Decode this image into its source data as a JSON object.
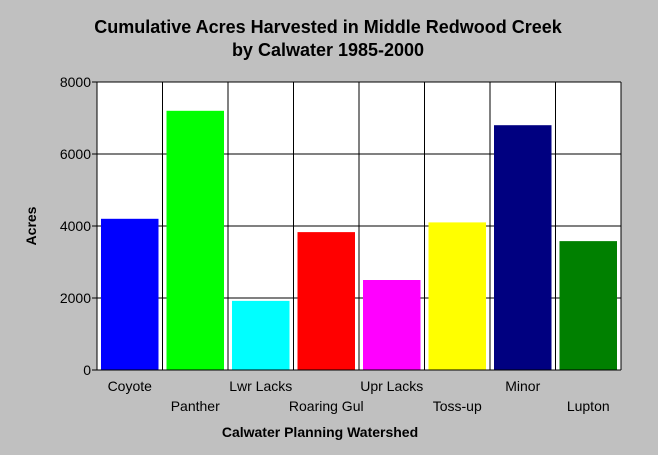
{
  "chart_data": {
    "type": "bar",
    "title": "Cumulative Acres Harvested in Middle Redwood Creek",
    "subtitle": "by Calwater 1985-2000",
    "xlabel": "Calwater Planning Watershed",
    "ylabel": "Acres",
    "ylim": [
      0,
      8000
    ],
    "yticks": [
      0,
      2000,
      4000,
      6000,
      8000
    ],
    "ytick_labels": [
      "0",
      "2000",
      "4000",
      "6000",
      "8000"
    ],
    "grid": true,
    "legend": "none",
    "categories": [
      "Coyote",
      "Panther",
      "Lwr Lacks",
      "Roaring Gul",
      "Upr Lacks",
      "Toss-up",
      "Minor",
      "Lupton"
    ],
    "values": [
      4200,
      7200,
      1920,
      3830,
      2500,
      4100,
      6800,
      3580
    ],
    "colors": [
      "#0000ff",
      "#00ff00",
      "#00ffff",
      "#ff0000",
      "#ff00ff",
      "#ffff00",
      "#000080",
      "#008000"
    ]
  }
}
